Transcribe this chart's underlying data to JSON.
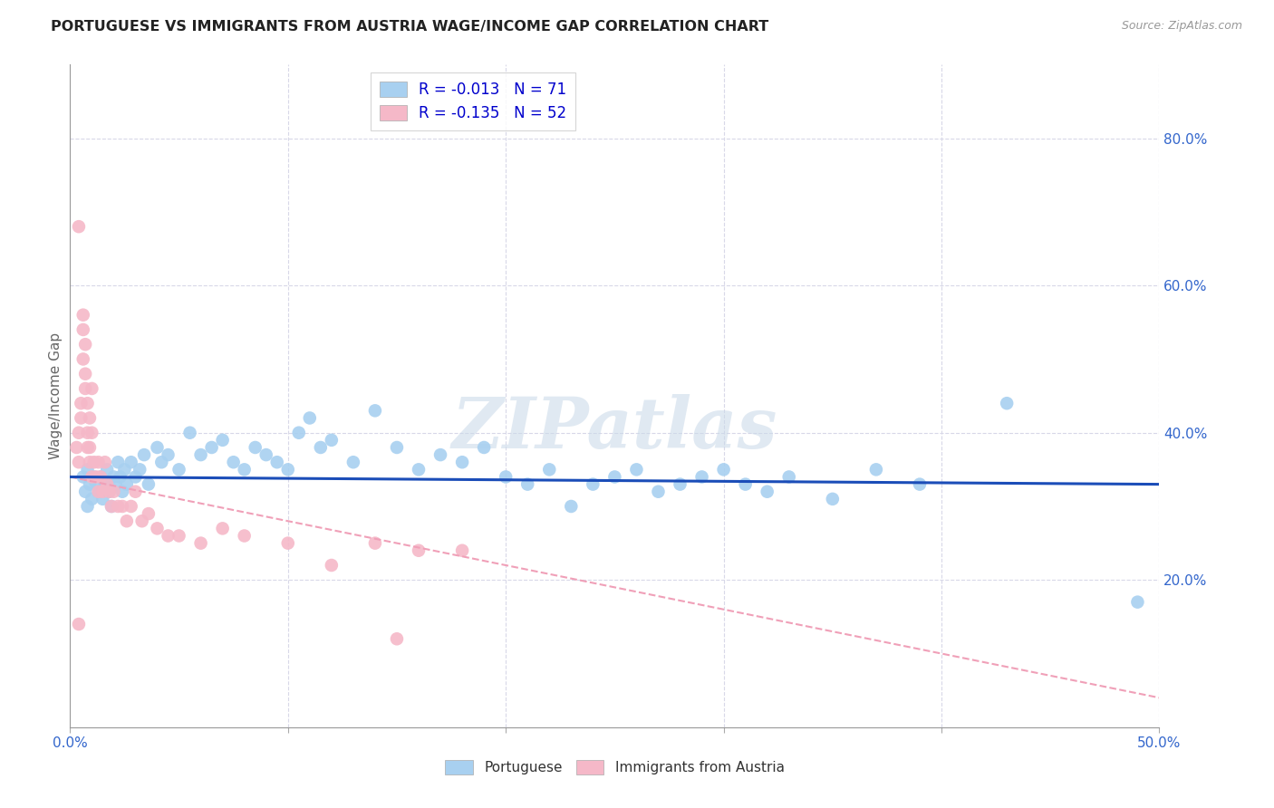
{
  "title": "PORTUGUESE VS IMMIGRANTS FROM AUSTRIA WAGE/INCOME GAP CORRELATION CHART",
  "source": "Source: ZipAtlas.com",
  "ylabel": "Wage/Income Gap",
  "x_min": 0.0,
  "x_max": 0.5,
  "y_min": 0.0,
  "y_max": 0.9,
  "x_ticks": [
    0.0,
    0.1,
    0.2,
    0.3,
    0.4,
    0.5
  ],
  "x_tick_labels": [
    "0.0%",
    "",
    "",
    "",
    "",
    "50.0%"
  ],
  "y_ticks_right": [
    0.2,
    0.4,
    0.6,
    0.8
  ],
  "y_tick_labels_right": [
    "20.0%",
    "40.0%",
    "60.0%",
    "80.0%"
  ],
  "blue_color": "#A8D0F0",
  "pink_color": "#F5B8C8",
  "blue_line_color": "#1B4DB8",
  "pink_line_color": "#E06080",
  "pink_dashed_color": "#F0A0B8",
  "grid_color": "#D8D8E8",
  "watermark": "ZIPatlas",
  "blue_scatter_x": [
    0.006,
    0.007,
    0.008,
    0.008,
    0.009,
    0.01,
    0.011,
    0.012,
    0.013,
    0.014,
    0.015,
    0.016,
    0.017,
    0.018,
    0.019,
    0.02,
    0.021,
    0.022,
    0.023,
    0.024,
    0.025,
    0.026,
    0.028,
    0.03,
    0.032,
    0.034,
    0.036,
    0.04,
    0.042,
    0.045,
    0.05,
    0.055,
    0.06,
    0.065,
    0.07,
    0.075,
    0.08,
    0.085,
    0.09,
    0.095,
    0.1,
    0.105,
    0.11,
    0.115,
    0.12,
    0.13,
    0.14,
    0.15,
    0.16,
    0.17,
    0.18,
    0.19,
    0.2,
    0.21,
    0.22,
    0.23,
    0.24,
    0.25,
    0.26,
    0.27,
    0.28,
    0.29,
    0.3,
    0.31,
    0.32,
    0.33,
    0.35,
    0.37,
    0.39,
    0.43,
    0.49
  ],
  "blue_scatter_y": [
    0.34,
    0.32,
    0.35,
    0.3,
    0.33,
    0.31,
    0.34,
    0.33,
    0.32,
    0.34,
    0.31,
    0.33,
    0.35,
    0.32,
    0.3,
    0.34,
    0.33,
    0.36,
    0.34,
    0.32,
    0.35,
    0.33,
    0.36,
    0.34,
    0.35,
    0.37,
    0.33,
    0.38,
    0.36,
    0.37,
    0.35,
    0.4,
    0.37,
    0.38,
    0.39,
    0.36,
    0.35,
    0.38,
    0.37,
    0.36,
    0.35,
    0.4,
    0.42,
    0.38,
    0.39,
    0.36,
    0.43,
    0.38,
    0.35,
    0.37,
    0.36,
    0.38,
    0.34,
    0.33,
    0.35,
    0.3,
    0.33,
    0.34,
    0.35,
    0.32,
    0.33,
    0.34,
    0.35,
    0.33,
    0.32,
    0.34,
    0.31,
    0.35,
    0.33,
    0.44,
    0.17
  ],
  "pink_scatter_x": [
    0.003,
    0.004,
    0.004,
    0.005,
    0.005,
    0.006,
    0.006,
    0.007,
    0.007,
    0.008,
    0.008,
    0.009,
    0.009,
    0.01,
    0.01,
    0.011,
    0.012,
    0.013,
    0.013,
    0.014,
    0.015,
    0.016,
    0.017,
    0.018,
    0.019,
    0.02,
    0.022,
    0.024,
    0.026,
    0.028,
    0.03,
    0.033,
    0.036,
    0.04,
    0.045,
    0.05,
    0.06,
    0.07,
    0.08,
    0.1,
    0.12,
    0.14,
    0.15,
    0.16,
    0.18,
    0.004,
    0.006,
    0.007,
    0.008,
    0.009,
    0.01,
    0.004
  ],
  "pink_scatter_y": [
    0.38,
    0.36,
    0.4,
    0.44,
    0.42,
    0.5,
    0.54,
    0.46,
    0.48,
    0.38,
    0.4,
    0.36,
    0.38,
    0.34,
    0.4,
    0.36,
    0.34,
    0.32,
    0.36,
    0.34,
    0.32,
    0.36,
    0.33,
    0.32,
    0.3,
    0.32,
    0.3,
    0.3,
    0.28,
    0.3,
    0.32,
    0.28,
    0.29,
    0.27,
    0.26,
    0.26,
    0.25,
    0.27,
    0.26,
    0.25,
    0.22,
    0.25,
    0.12,
    0.24,
    0.24,
    0.68,
    0.56,
    0.52,
    0.44,
    0.42,
    0.46,
    0.14
  ],
  "blue_trend_start_y": 0.34,
  "blue_trend_end_y": 0.33,
  "pink_trend_start_y": 0.34,
  "pink_trend_end_y": 0.04
}
